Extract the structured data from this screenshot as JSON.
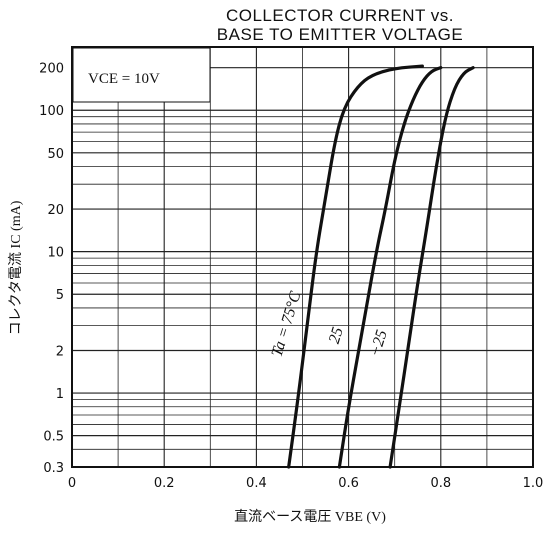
{
  "chart_data": {
    "type": "line",
    "title": "COLLECTOR CURRENT vs.",
    "subtitle": "BASE TO EMITTER VOLTAGE",
    "condition": "V<sub>CE</sub> = 10V",
    "xlabel": "直流ベース電圧 V_BE (V)",
    "ylabel": "コレクタ電流 I_C (mA)",
    "x_scale": "linear",
    "y_scale": "log",
    "xlim": [
      0,
      1.0
    ],
    "ylim": [
      0.3,
      280
    ],
    "x_ticks": [
      0,
      0.2,
      0.4,
      0.6,
      0.8,
      1.0
    ],
    "x_tick_labels": [
      "0",
      "0.2",
      "0.4",
      "0.6",
      "0.8",
      "1.0"
    ],
    "y_ticks": [
      0.3,
      0.5,
      1,
      2,
      5,
      10,
      20,
      50,
      100,
      200
    ],
    "y_tick_labels": [
      "0.3",
      "0.5",
      "1",
      "2",
      "5",
      "10",
      "20",
      "50",
      "100",
      "200"
    ],
    "grid": true,
    "series": [
      {
        "name": "Ta = 75°C",
        "x": [
          0.47,
          0.49,
          0.51,
          0.53,
          0.55,
          0.57,
          0.59,
          0.62,
          0.65,
          0.7,
          0.76
        ],
        "y": [
          0.3,
          0.9,
          3,
          10,
          24,
          60,
          105,
          148,
          178,
          198,
          205
        ]
      },
      {
        "name": "25",
        "x": [
          0.58,
          0.6,
          0.63,
          0.66,
          0.68,
          0.7,
          0.72,
          0.74,
          0.76,
          0.78,
          0.8
        ],
        "y": [
          0.3,
          0.8,
          2.8,
          10,
          20,
          45,
          80,
          120,
          160,
          190,
          200
        ]
      },
      {
        "name": "−25",
        "x": [
          0.69,
          0.71,
          0.73,
          0.75,
          0.77,
          0.79,
          0.81,
          0.83,
          0.85,
          0.87
        ],
        "y": [
          0.3,
          0.8,
          2.2,
          6,
          15,
          40,
          90,
          145,
          185,
          200
        ]
      }
    ],
    "annotations": [
      "Ta = 75°C",
      "25",
      "−25"
    ]
  },
  "labels": {
    "xlabel_text": "直流ベース電圧 VBE (V)",
    "ylabel_text": "コレクタ電流 IC (mA)",
    "condition_text": "VCE = 10V"
  }
}
